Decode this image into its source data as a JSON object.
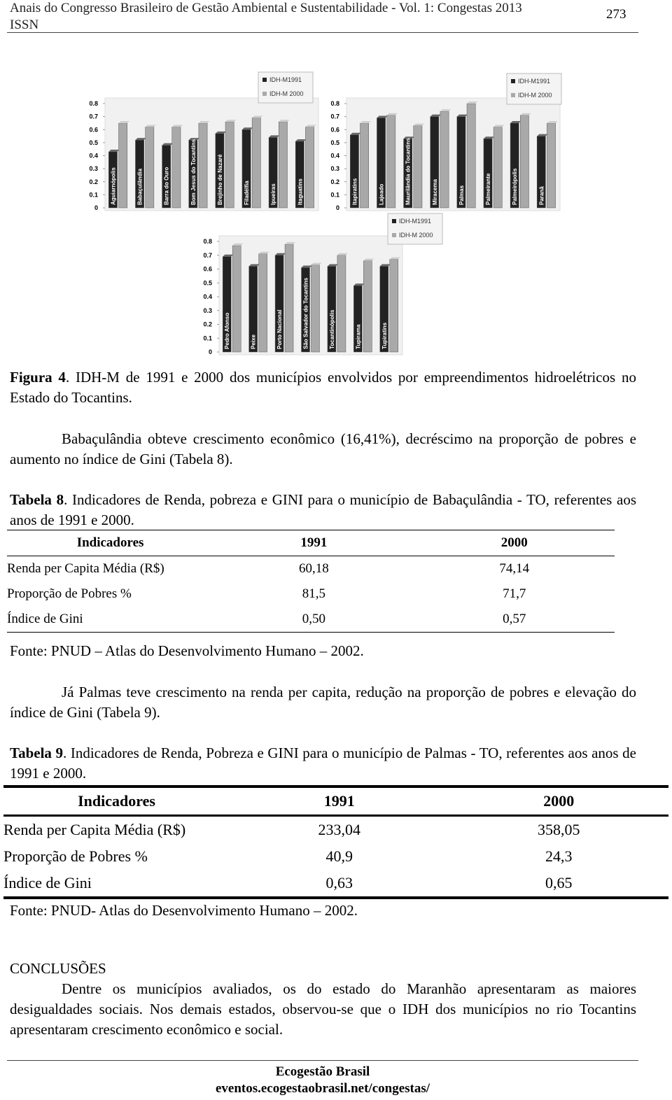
{
  "header": {
    "line1": "Anais do Congresso Brasileiro de Gestão Ambiental e Sustentabilidade - Vol. 1: Congestas 2013",
    "line2": "ISSN",
    "page": "273"
  },
  "chart_data": [
    {
      "type": "bar",
      "categories": [
        "Aguiarnópolis",
        "Babaçulândia",
        "Barra do Ouro",
        "Bom Jesus do Tocantins",
        "Brejinho de Nazaré",
        "Filadélfia",
        "Ipueiras",
        "Itaguatins"
      ],
      "series": [
        {
          "name": "IDH-M1991",
          "color": "#222222",
          "values": [
            0.43,
            0.52,
            0.48,
            0.52,
            0.57,
            0.6,
            0.54,
            0.51
          ]
        },
        {
          "name": "IDH-M 2000",
          "color": "#a9a9a9",
          "values": [
            0.65,
            0.62,
            0.62,
            0.65,
            0.66,
            0.69,
            0.66,
            0.62
          ]
        }
      ],
      "ylim": [
        0,
        0.8
      ],
      "yticks": [
        0,
        0.1,
        0.2,
        0.3,
        0.4,
        0.5,
        0.6,
        0.7,
        0.8
      ]
    },
    {
      "type": "bar",
      "categories": [
        "Itapiratins",
        "Lajeado",
        "Maurilândia do Tocantins",
        "Miracema",
        "Palmas",
        "Palmeirante",
        "Palmeirópolis",
        "Paranã"
      ],
      "series": [
        {
          "name": "IDH-M1991",
          "color": "#222222",
          "values": [
            0.56,
            0.69,
            0.53,
            0.7,
            0.7,
            0.53,
            0.65,
            0.55
          ]
        },
        {
          "name": "IDH-M 2000",
          "color": "#a9a9a9",
          "values": [
            0.65,
            0.71,
            0.63,
            0.74,
            0.8,
            0.62,
            0.71,
            0.65
          ]
        }
      ],
      "ylim": [
        0,
        0.8
      ],
      "yticks": [
        0,
        0.1,
        0.2,
        0.3,
        0.4,
        0.5,
        0.6,
        0.7,
        0.8
      ]
    },
    {
      "type": "bar",
      "categories": [
        "Pedro Afonso",
        "Peixe",
        "Porto Nacional",
        "São Salvador do Tocantins",
        "Tocantinópolis",
        "Tupirama",
        "Tupiratins"
      ],
      "series": [
        {
          "name": "IDH-M1991",
          "color": "#222222",
          "values": [
            0.69,
            0.62,
            0.7,
            0.61,
            0.62,
            0.48,
            0.62
          ]
        },
        {
          "name": "IDH-M 2000",
          "color": "#a9a9a9",
          "values": [
            0.77,
            0.71,
            0.78,
            0.63,
            0.7,
            0.66,
            0.67
          ]
        }
      ],
      "ylim": [
        0,
        0.8
      ],
      "yticks": [
        0,
        0.1,
        0.2,
        0.3,
        0.4,
        0.5,
        0.6,
        0.7,
        0.8
      ]
    }
  ],
  "figure": {
    "label": "Figura 4",
    "caption": ". IDH-M de 1991 e 2000 dos municípios envolvidos por empreendimentos hidroelétricos no Estado do Tocantins."
  },
  "paragraph1": "Babaçulândia obteve crescimento econômico (16,41%), decréscimo na proporção de pobres e aumento no índice de Gini (Tabela 8).",
  "table8": {
    "label": "Tabela 8",
    "caption": ". Indicadores de Renda, pobreza e GINI para o município de Babaçulândia - TO, referentes aos anos de 1991 e 2000.",
    "header": [
      "Indicadores",
      "1991",
      "2000"
    ],
    "rows": [
      [
        "Renda per Capita Média (R$)",
        "60,18",
        "74,14"
      ],
      [
        "Proporção de Pobres %",
        "81,5",
        "71,7"
      ],
      [
        "Índice de Gini",
        "0,50",
        "0,57"
      ]
    ],
    "source": "Fonte: PNUD – Atlas do Desenvolvimento Humano – 2002."
  },
  "paragraph2": "Já Palmas teve crescimento na renda per capita, redução na proporção de pobres e elevação do índice de Gini (Tabela 9).",
  "table9": {
    "label": "Tabela 9",
    "caption": ". Indicadores de Renda, Pobreza e GINI para o município de Palmas - TO, referentes aos anos de 1991 e 2000.",
    "header": [
      "Indicadores",
      "1991",
      "2000"
    ],
    "rows": [
      [
        "Renda per Capita Média (R$)",
        "233,04",
        "358,05"
      ],
      [
        "Proporção de Pobres %",
        "40,9",
        "24,3"
      ],
      [
        "Índice de Gini",
        "0,63",
        "0,65"
      ]
    ],
    "source": "Fonte: PNUD- Atlas do Desenvolvimento Humano – 2002."
  },
  "conclusions": {
    "title": "CONCLUSÕES",
    "text": "Dentre os municípios avaliados, os do estado do Maranhão apresentaram as maiores desigualdades sociais. Nos demais estados, observou-se que o IDH dos municípios no rio Tocantins apresentaram crescimento econômico e social."
  },
  "footer": {
    "line1": "Ecogestão Brasil",
    "line2": "eventos.ecogestaobrasil.net/congestas/"
  }
}
